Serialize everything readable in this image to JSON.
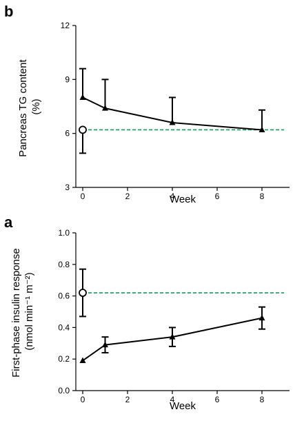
{
  "chart_data": [
    {
      "panel_label": "b",
      "type": "line",
      "xlabel": "Week",
      "ylabel_lines": [
        "Pancreas TG content",
        "(%)"
      ],
      "xlim": [
        0,
        9
      ],
      "ylim": [
        3,
        12
      ],
      "x_ticks": [
        0,
        2,
        4,
        6,
        8
      ],
      "y_ticks": [
        3,
        6,
        9,
        12
      ],
      "x_tick_labels": [
        "0",
        "2",
        "4",
        "6",
        "8"
      ],
      "y_tick_labels": [
        "3",
        "6",
        "9",
        "12"
      ],
      "series": [
        {
          "marker": "triangle",
          "color": "#000000",
          "x": [
            0,
            1,
            4,
            8
          ],
          "y": [
            8.0,
            7.4,
            6.6,
            6.2
          ],
          "error_plus": [
            1.6,
            1.6,
            1.4,
            1.1
          ],
          "error_minus": [
            0,
            0,
            0,
            0
          ]
        },
        {
          "marker": "open-circle",
          "color": "#000000",
          "x": [
            0
          ],
          "y": [
            6.2
          ],
          "error_plus": [
            0
          ],
          "error_minus": [
            1.3
          ]
        }
      ],
      "reference_line": {
        "y": 6.2,
        "color": "#1a9a52",
        "style": "dashed"
      }
    },
    {
      "panel_label": "a",
      "type": "line",
      "xlabel": "Week",
      "ylabel_lines": [
        "First-phase insulin response",
        "(nmol min⁻¹ m⁻²)"
      ],
      "xlim": [
        0,
        9
      ],
      "ylim": [
        0.0,
        1.0
      ],
      "x_ticks": [
        0,
        2,
        4,
        6,
        8
      ],
      "y_ticks": [
        0.0,
        0.2,
        0.4,
        0.6,
        0.8,
        1.0
      ],
      "x_tick_labels": [
        "0",
        "2",
        "4",
        "6",
        "8"
      ],
      "y_tick_labels": [
        "0.0",
        "0.2",
        "0.4",
        "0.6",
        "0.8",
        "1.0"
      ],
      "series": [
        {
          "marker": "triangle",
          "color": "#000000",
          "x": [
            0,
            1,
            4,
            8
          ],
          "y": [
            0.19,
            0.29,
            0.34,
            0.46
          ],
          "error_plus": [
            0,
            0.05,
            0.06,
            0.07
          ],
          "error_minus": [
            0,
            0.05,
            0.06,
            0.07
          ]
        },
        {
          "marker": "open-circle",
          "color": "#000000",
          "x": [
            0
          ],
          "y": [
            0.62
          ],
          "error_plus": [
            0.15
          ],
          "error_minus": [
            0.15
          ]
        }
      ],
      "reference_line": {
        "y": 0.62,
        "color": "#1a9a52",
        "style": "dashed"
      }
    }
  ]
}
